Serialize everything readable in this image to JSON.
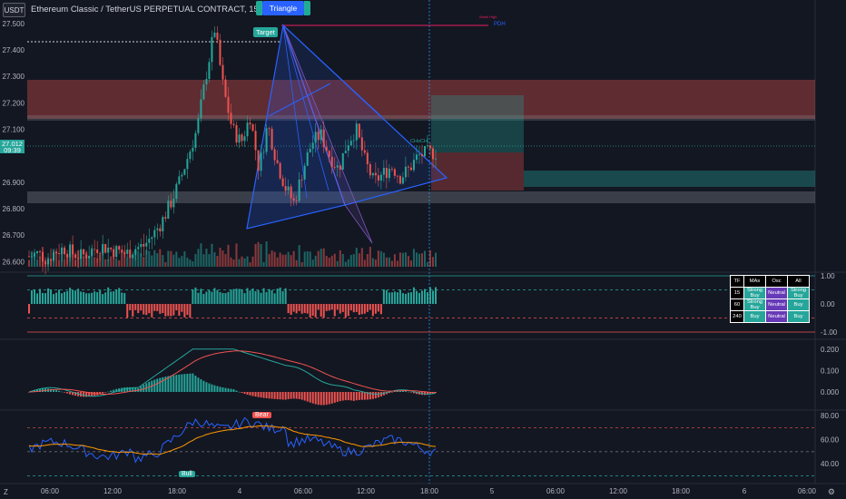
{
  "header": {
    "currency": "USDT",
    "title": "Ethereum Classic / TetherUS PERPETUAL CONTRACT, 15, BINANCE",
    "pattern_label": "Triangle"
  },
  "price_tag": {
    "price": "27.012",
    "timer": "09:39"
  },
  "annotations": {
    "target": "Target",
    "pdh": "PDH",
    "weak_high": "Weak High",
    "choch": "CHoCH",
    "bull": "Bull",
    "bear": "Bear"
  },
  "signal_table": {
    "headers": [
      "TF",
      "MAs",
      "Osc",
      "All"
    ],
    "rows": [
      {
        "tf": "15",
        "mas": "Strong Buy",
        "osc": "Neutral",
        "all": "Strong Buy"
      },
      {
        "tf": "60",
        "mas": "Strong Buy",
        "osc": "Neutral",
        "all": "Buy"
      },
      {
        "tf": "240",
        "mas": "Buy",
        "osc": "Neutral",
        "all": "Buy"
      }
    ]
  },
  "colors": {
    "bg": "#131722",
    "up": "#26a69a",
    "down": "#ef5350",
    "triangle": "#2962ff",
    "text": "#b2b5be"
  },
  "chart_data": [
    {
      "type": "candlestick",
      "title": "Ethereum Classic / TetherUS PERPETUAL CONTRACT, 15, BINANCE",
      "ylim": [
        26.56,
        27.52
      ],
      "y_ticks": [
        "27.500",
        "27.400",
        "27.300",
        "27.200",
        "27.100",
        "26.900",
        "26.800",
        "26.700",
        "26.600"
      ],
      "x_ticks": [
        "06:00",
        "12:00",
        "18:00",
        "4",
        "06:00",
        "12:00",
        "18:00",
        "5",
        "06:00",
        "12:00",
        "18:00",
        "6",
        "06:00"
      ],
      "close_path": [
        26.62,
        26.63,
        26.61,
        26.64,
        26.65,
        26.63,
        26.62,
        26.64,
        26.66,
        26.65,
        26.64,
        26.63,
        26.65,
        26.66,
        26.7,
        26.75,
        26.82,
        26.9,
        27.0,
        27.1,
        27.3,
        27.48,
        27.25,
        27.1,
        27.05,
        27.15,
        26.95,
        27.12,
        26.98,
        26.88,
        26.82,
        26.95,
        27.05,
        27.08,
        27.0,
        26.95,
        27.05,
        27.1,
        26.98,
        26.9,
        26.93,
        26.96,
        26.92,
        26.95,
        27.0,
        27.01,
        27.012
      ],
      "last_price": 27.012
    },
    {
      "type": "bar",
      "title": "",
      "ylim": [
        -1.0,
        1.0
      ],
      "y_ticks": [
        "1.00",
        "0.00",
        "-1.00"
      ]
    },
    {
      "type": "line",
      "title": "",
      "ylim": [
        -0.02,
        0.22
      ],
      "y_ticks": [
        "0.200",
        "0.100",
        "0.000"
      ]
    },
    {
      "type": "line",
      "title": "",
      "ylim": [
        30,
        85
      ],
      "y_ticks": [
        "80.00",
        "60.00",
        "40.00"
      ]
    }
  ]
}
